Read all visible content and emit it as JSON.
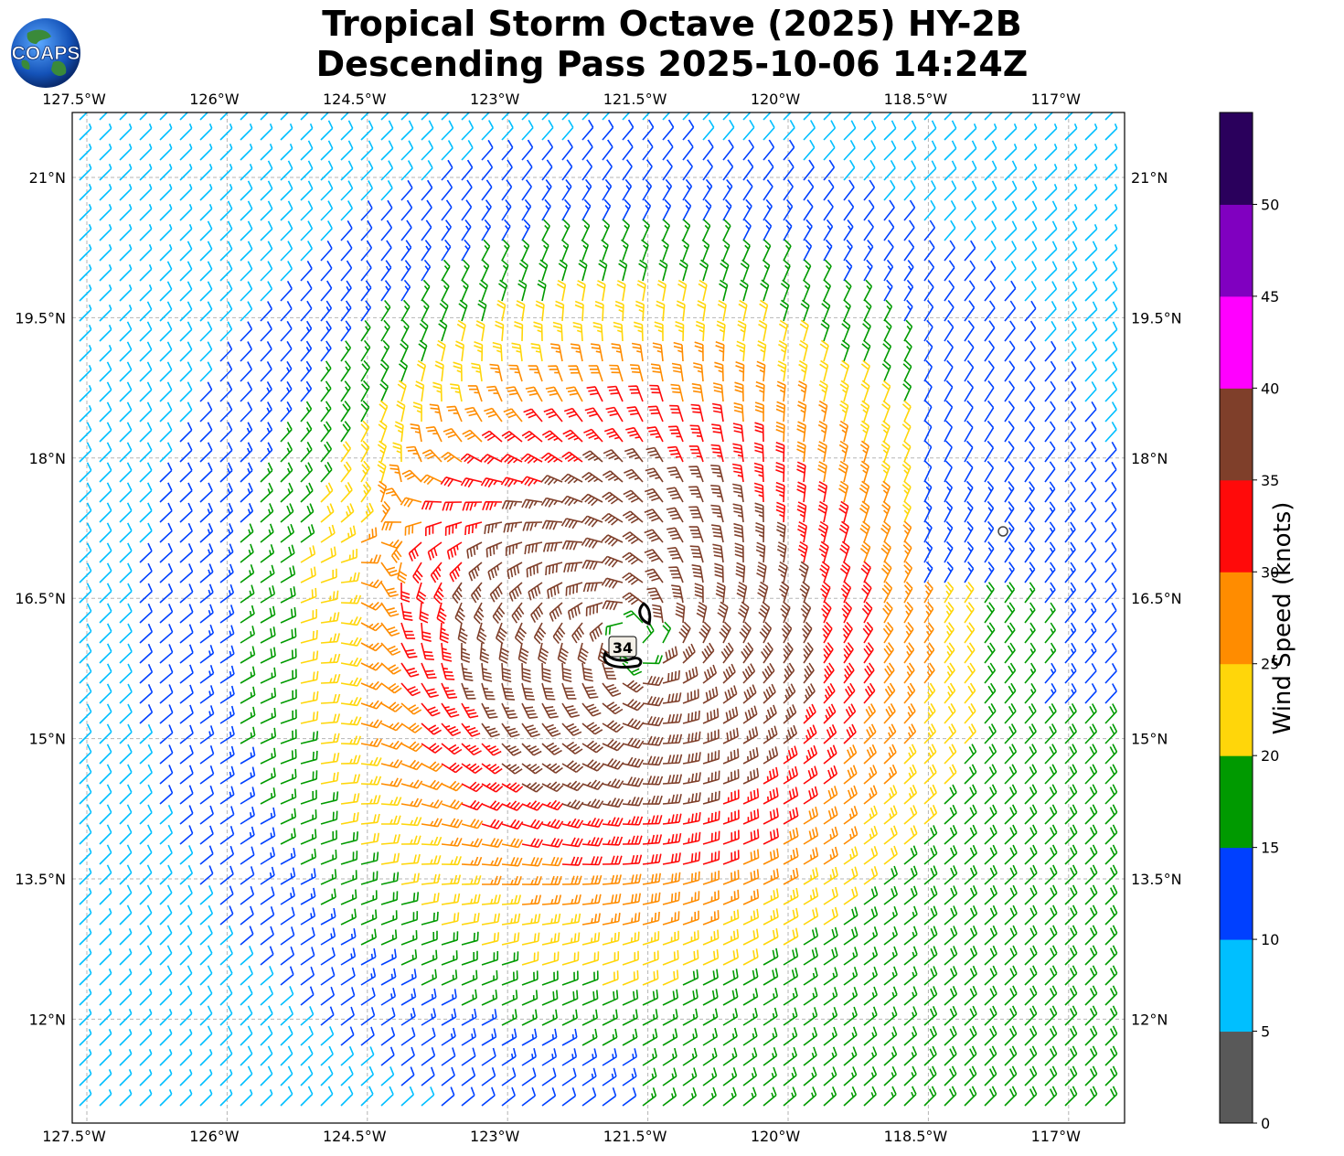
{
  "title": {
    "line1": "Tropical Storm Octave (2025) HY-2B",
    "line2": "Descending Pass 2025-10-06 14:24Z"
  },
  "logo": {
    "text": "COAPS",
    "icon": "globe-icon"
  },
  "map": {
    "lon_range": [
      -127.5,
      -116.25
    ],
    "lat_range": [
      11.1,
      21.9
    ],
    "lon_ticks": [
      "127.5°W",
      "126°W",
      "124.5°W",
      "123°W",
      "121.5°W",
      "120°W",
      "118.5°W",
      "117°W"
    ],
    "lat_ticks": [
      "21°N",
      "19.5°N",
      "18°N",
      "16.5°N",
      "15°N",
      "13.5°N",
      "12°N"
    ],
    "contour_label": "34",
    "storm_center": {
      "lon": -121.6,
      "lat": 16.35
    },
    "grid": "dashed"
  },
  "colorbar": {
    "label": "Wind Speed (knots)",
    "ticks": [
      "0",
      "5",
      "10",
      "15",
      "20",
      "25",
      "30",
      "35",
      "40",
      "45",
      "50"
    ],
    "colors": [
      "#595959",
      "#00bfff",
      "#0040ff",
      "#009a00",
      "#ffd60a",
      "#ff8c00",
      "#ff0a0a",
      "#7f3f2a",
      "#ff00ff",
      "#8000c0",
      "#2a005c"
    ]
  }
}
